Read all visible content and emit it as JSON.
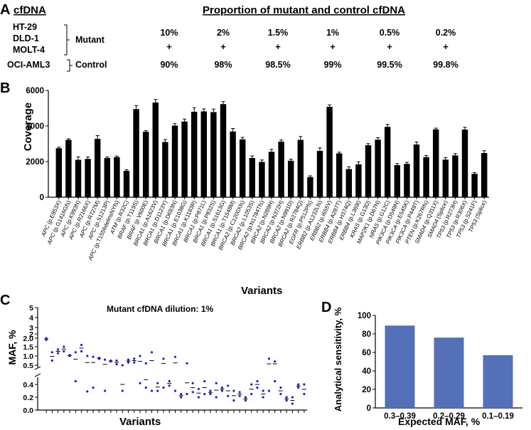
{
  "panel_a": {
    "label": "A",
    "cfdna_header": "cfDNA",
    "proportion_header": "Proportion of mutant and control cfDNA",
    "mutant_lines": [
      "HT-29",
      "DLD-1",
      "MOLT-4"
    ],
    "mutant_label": "Mutant",
    "control_line": "OCI-AML3",
    "control_label": "Control",
    "mutant_percents": [
      "10%",
      "2%",
      "1.5%",
      "1%",
      "0.5%",
      "0.2%"
    ],
    "plus_sign": "+",
    "control_percents": [
      "90%",
      "98%",
      "98.5%",
      "99%",
      "99.5%",
      "99.8%"
    ]
  },
  "chart_data": [
    {
      "panel": "B",
      "type": "bar",
      "xlabel": "Variants",
      "ylabel": "Coverage",
      "ylim": [
        0,
        6000
      ],
      "yticks": [
        0,
        2000,
        4000,
        6000
      ],
      "categories": [
        {
          "gene": "APC",
          "variant": "(p.E853X)"
        },
        {
          "gene": "APC",
          "variant": "(p.G1416Gfs)"
        },
        {
          "gene": "APC",
          "variant": "(p.K993N)"
        },
        {
          "gene": "APC",
          "variant": "(p.R2166X)"
        },
        {
          "gene": "APC",
          "variant": "(p.R727M)"
        },
        {
          "gene": "APC",
          "variant": "(p.S1213P)"
        },
        {
          "gene": "APC",
          "variant": "(p.T1556delinsNYfs)"
        },
        {
          "gene": "ATM",
          "variant": "(p.R32C)"
        },
        {
          "gene": "BRAF",
          "variant": "(p.T119S)"
        },
        {
          "gene": "BRAF",
          "variant": "(p.V600E)"
        },
        {
          "gene": "BRCA1",
          "variant": "(p.A1623V)"
        },
        {
          "gene": "BRCA1",
          "variant": "(p.D1123Y)"
        },
        {
          "gene": "BRCA1",
          "variant": "(p.D693N)"
        },
        {
          "gene": "BRCA1",
          "variant": "(p.E1038G)"
        },
        {
          "gene": "BRCA1",
          "variant": "(p.K1183R)"
        },
        {
          "gene": "BRCA1",
          "variant": "(p.P871L)"
        },
        {
          "gene": "BRCA1",
          "variant": "(p.P832S)"
        },
        {
          "gene": "BRCA1",
          "variant": "(p.S1613G)"
        },
        {
          "gene": "BRCA1",
          "variant": "(p.T1548M)"
        },
        {
          "gene": "BRCA2",
          "variant": "(p.C1200Xfs)"
        },
        {
          "gene": "BRCA2",
          "variant": "(p.L1053S)"
        },
        {
          "gene": "BRCA2",
          "variant": "(p.N1784Tfs)"
        },
        {
          "gene": "BRCA2",
          "variant": "(p.N289H)"
        },
        {
          "gene": "BRCA2",
          "variant": "(p.N372H)"
        },
        {
          "gene": "BRCA2",
          "variant": "(p.N991D)"
        },
        {
          "gene": "BRCA2",
          "variant": "(p.R2784Q)"
        },
        {
          "gene": "EGFR",
          "variant": "(p.P512Pfs)"
        },
        {
          "gene": "ERBB2",
          "variant": "(p.A1232Lfs)"
        },
        {
          "gene": "ERBB2",
          "variant": "(p.I655V)"
        },
        {
          "gene": "ERBB4",
          "variant": "(p.A287T)"
        },
        {
          "gene": "ERBB4",
          "variant": "(p.H374Q)"
        },
        {
          "gene": "ERBB4",
          "variant": "(p.L369I)"
        },
        {
          "gene": "KRAS",
          "variant": "(p.G13D)"
        },
        {
          "gene": "MAP2K1",
          "variant": "(p.D67N)"
        },
        {
          "gene": "NRAS",
          "variant": "(p.G12C)"
        },
        {
          "gene": "PIK3CA",
          "variant": "(p.D549N)"
        },
        {
          "gene": "PIK3CA",
          "variant": "(p.E545K)"
        },
        {
          "gene": "PIK3CA",
          "variant": "(p.P449T)"
        },
        {
          "gene": "PTEN",
          "variant": "(p.K267Rfs)"
        },
        {
          "gene": "SMAD4",
          "variant": "(p.Q311X)"
        },
        {
          "gene": "SMAD4",
          "variant": "(Splice)"
        },
        {
          "gene": "TP53",
          "variant": "(p.R273H)"
        },
        {
          "gene": "TP53",
          "variant": "(p.R306X)"
        },
        {
          "gene": "TP53",
          "variant": "(p.S241F)"
        },
        {
          "gene": "TP53",
          "variant": "(Splice)"
        }
      ],
      "values": [
        2750,
        3220,
        2100,
        2150,
        3280,
        2200,
        2250,
        1480,
        4950,
        3680,
        5320,
        3100,
        4020,
        4250,
        4800,
        4820,
        4780,
        5230,
        3690,
        3250,
        2200,
        1980,
        2550,
        3120,
        2050,
        3220,
        1130,
        2600,
        5080,
        2460,
        1580,
        1850,
        2920,
        3230,
        3950,
        1800,
        1870,
        2960,
        2250,
        3810,
        2110,
        2350,
        3800,
        1310,
        2480
      ],
      "errors": [
        60,
        60,
        170,
        110,
        180,
        70,
        60,
        60,
        200,
        60,
        170,
        140,
        110,
        140,
        230,
        140,
        170,
        140,
        170,
        110,
        120,
        110,
        140,
        90,
        90,
        190,
        70,
        170,
        110,
        70,
        130,
        140,
        90,
        110,
        140,
        90,
        90,
        140,
        90,
        70,
        110,
        100,
        130,
        70,
        130
      ]
    },
    {
      "panel": "C",
      "type": "scatter",
      "annotation": "Mutant cfDNA dilution: 1%",
      "xlabel": "Variants",
      "ylabel": "MAF, %",
      "upper_ylim": [
        0.5,
        5
      ],
      "upper_yticks": [
        "0.5",
        "1.0",
        "1.5",
        "2.0",
        "2",
        "3",
        "4",
        "5"
      ],
      "lower_ylim": [
        0,
        0.4
      ],
      "lower_yticks": [
        "0.0",
        "0.2",
        "0.4"
      ],
      "variant_count": 45,
      "replicates": [
        [
          2.0,
          1.9
        ],
        [
          0.75,
          1.2
        ],
        [
          1.35,
          1.15
        ],
        [
          1.25,
          1.5
        ],
        [
          1.05,
          1.0
        ],
        [
          0.45,
          1.2
        ],
        [
          1.6,
          1.25
        ],
        [
          0.29,
          1.0
        ],
        [
          0.95,
          0.35
        ],
        [
          0.9,
          0.85
        ],
        [
          0.3,
          0.8
        ],
        [
          0.75,
          0.7
        ],
        [
          0.75,
          0.55
        ],
        [
          0.5,
          0.3
        ],
        [
          0.65,
          0.8
        ],
        [
          0.85,
          0.65
        ],
        [
          1.0,
          0.42
        ],
        [
          0.6,
          0.35
        ],
        [
          0.3,
          1.2
        ],
        [
          0.42,
          0.3
        ],
        [
          0.35,
          0.85
        ],
        [
          0.38,
          0.45
        ],
        [
          0.95,
          0.3
        ],
        [
          0.25,
          0.2
        ],
        [
          0.6,
          0.25
        ],
        [
          0.42,
          0.28
        ],
        [
          0.33,
          0.2
        ],
        [
          0.45,
          0.25
        ],
        [
          0.25,
          0.3
        ],
        [
          0.42,
          0.2
        ],
        [
          0.3,
          0.35
        ],
        [
          0.38,
          0.22
        ],
        [
          0.15,
          0.3
        ],
        [
          0.28,
          0.22
        ],
        [
          0.2,
          0.15
        ],
        [
          0.4,
          0.25
        ],
        [
          0.45,
          0.35
        ],
        [
          0.3,
          0.2
        ],
        [
          0.85,
          0.3
        ],
        [
          0.7,
          0.45
        ],
        [
          0.35,
          0.25
        ],
        [
          0.2,
          0.15
        ],
        [
          0.1,
          0.2
        ],
        [
          0.4,
          0.35
        ],
        [
          0.4,
          0.25
        ]
      ]
    },
    {
      "panel": "D",
      "type": "bar",
      "xlabel": "Expected MAF, %",
      "ylabel": "Analytical sensitivity, %",
      "ylim": [
        0,
        100
      ],
      "yticks": [
        0,
        20,
        40,
        60,
        80,
        100
      ],
      "categories": [
        "0.3–0.39",
        "0.2–0.29",
        "0.1–0.19"
      ],
      "values": [
        89,
        76,
        57
      ],
      "color": "#5470b8"
    }
  ],
  "colors": {
    "bar_b": "#000000",
    "dot_c": "#2020c8",
    "bar_d": "#5470b8"
  }
}
